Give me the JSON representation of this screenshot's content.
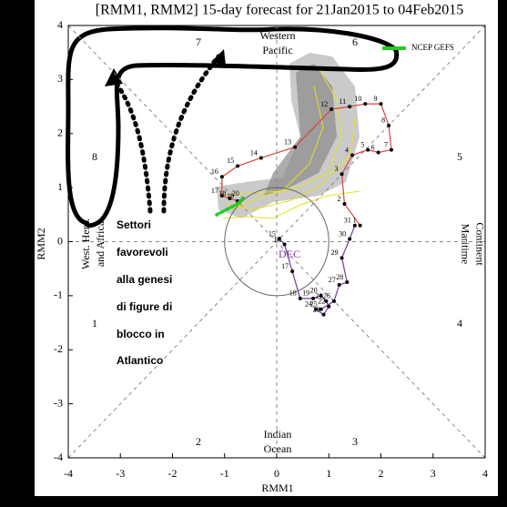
{
  "chart_data": {
    "type": "line",
    "title": "[RMM1, RMM2] 15-day forecast for 21Jan2015 to 04Feb2015",
    "x_label": "RMM1",
    "y_label": "RMM2",
    "xlim": [
      -4,
      4
    ],
    "ylim": [
      -4,
      4
    ],
    "xticks": [
      -4,
      -3,
      -2,
      -1,
      0,
      1,
      2,
      3,
      4
    ],
    "yticks": [
      -4,
      -3,
      -2,
      -1,
      0,
      1,
      2,
      3,
      4
    ],
    "phases": [
      "1",
      "2",
      "3",
      "4",
      "5",
      "6",
      "7",
      "8"
    ],
    "regions": {
      "western_pacific": [
        "Western",
        "Pacific"
      ],
      "maritime_continent": [
        "Maritime",
        "Continent"
      ],
      "indian_ocean": [
        "Indian",
        "Ocean"
      ],
      "west_hem": [
        "West. Hem.",
        "and Africa"
      ]
    },
    "month_label": "DEC",
    "legend": "upper right",
    "series": [
      {
        "color": "#7a3a9a",
        "labels": [
          "15",
          "16",
          "17",
          "18",
          "19",
          "20",
          "21",
          "22",
          "23",
          "24",
          "25",
          "26",
          "27",
          "28",
          "29",
          "30",
          "31"
        ],
        "x": [
          0.05,
          0.15,
          0.3,
          0.45,
          0.7,
          0.85,
          0.95,
          1.0,
          0.9,
          0.75,
          0.85,
          1.1,
          1.2,
          1.35,
          1.25,
          1.4,
          1.5
        ],
        "values": [
          0.05,
          -0.05,
          -0.55,
          -1.05,
          -1.05,
          -1.0,
          -1.1,
          -1.2,
          -1.35,
          -1.25,
          -1.25,
          -1.1,
          -0.8,
          -0.75,
          -0.3,
          0.05,
          0.3
        ]
      },
      {
        "color": "#d9453a",
        "labels": [
          "1",
          "2",
          "3",
          "4",
          "5",
          "6",
          "7",
          "8",
          "9",
          "10",
          "11",
          "12",
          "13",
          "14",
          "15",
          "16",
          "17",
          "18",
          "19",
          "20"
        ],
        "x": [
          1.6,
          1.3,
          1.25,
          1.45,
          1.75,
          1.95,
          2.2,
          2.15,
          2.0,
          1.7,
          1.4,
          1.05,
          0.35,
          -0.3,
          -0.75,
          -1.05,
          -1.05,
          -0.9,
          -0.75,
          -0.65
        ],
        "values": [
          0.3,
          0.7,
          1.25,
          1.6,
          1.7,
          1.65,
          1.7,
          2.15,
          2.55,
          2.55,
          2.5,
          2.45,
          1.75,
          1.55,
          1.4,
          1.2,
          0.85,
          0.8,
          0.75,
          0.8
        ]
      },
      {
        "name": "NCEP GEFS",
        "color": "#22cc22",
        "x": [
          -0.65,
          -0.75,
          -0.85,
          -0.95,
          -1.05,
          -1.15
        ],
        "values": [
          0.8,
          0.7,
          0.65,
          0.6,
          0.55,
          0.5
        ]
      }
    ]
  },
  "annotation": {
    "lines": [
      "Settori",
      "favorevoli",
      "alla genesi",
      "di figure di",
      "blocco in",
      "Atlantico"
    ]
  }
}
